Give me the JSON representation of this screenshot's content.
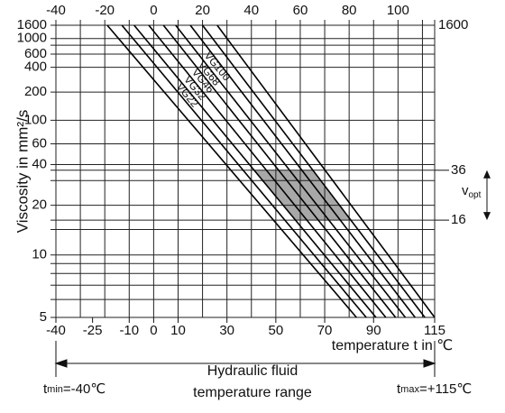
{
  "chart_data": {
    "type": "line",
    "ylabel": "Viscosity in mm²/s",
    "xlabel": "temperature t in ℃",
    "yscale": "loglog",
    "color": "#000000",
    "band_color": "#a8a8a8",
    "xlim": [
      -40,
      115
    ],
    "ylim": [
      5,
      1600
    ],
    "xticks": [
      -40,
      -25,
      -10,
      0,
      10,
      30,
      50,
      70,
      90,
      115
    ],
    "xticks_top": [
      -40,
      -20,
      0,
      20,
      40,
      60,
      80,
      100
    ],
    "yticks": [
      5,
      10,
      20,
      40,
      60,
      100,
      200,
      400,
      600,
      1000,
      1600
    ],
    "yticks_right": [
      1600
    ],
    "xgrid": [
      -40,
      -30,
      -20,
      -10,
      0,
      10,
      20,
      30,
      40,
      50,
      60,
      70,
      80,
      90,
      100,
      110,
      115
    ],
    "ygrid": [
      5,
      6,
      7,
      8,
      9,
      10,
      14,
      16,
      20,
      30,
      36,
      40,
      60,
      100,
      200,
      400,
      600,
      800,
      1000,
      1600
    ],
    "series": [
      {
        "name": null,
        "x": [
          -19,
          83
        ],
        "values": [
          1600,
          5
        ]
      },
      {
        "name": null,
        "x": [
          -13,
          87
        ],
        "values": [
          1600,
          5
        ]
      },
      {
        "name": "VG22",
        "x": [
          -8,
          91
        ],
        "values": [
          1600,
          5
        ]
      },
      {
        "name": "VG32",
        "x": [
          -2,
          95
        ],
        "values": [
          1600,
          5
        ]
      },
      {
        "name": "VG46",
        "x": [
          4,
          99
        ],
        "values": [
          1600,
          5
        ]
      },
      {
        "name": "VG68",
        "x": [
          9,
          103
        ],
        "values": [
          1600,
          5
        ]
      },
      {
        "name": "VG100",
        "x": [
          15,
          107
        ],
        "values": [
          1600,
          5
        ]
      },
      {
        "name": null,
        "x": [
          20,
          111
        ],
        "values": [
          1600,
          5
        ]
      },
      {
        "name": null,
        "x": [
          26,
          115
        ],
        "values": [
          1600,
          5
        ]
      }
    ],
    "optimal_range": [
      16,
      36
    ],
    "optimal_symbol": "v",
    "optimal_subscript": "opt",
    "range_min": {
      "symbol": "t",
      "subscript": "min",
      "text": "=-40℃"
    },
    "range_max": {
      "symbol": "t",
      "subscript": "max",
      "text": "=+115℃"
    },
    "range_label": [
      "Hydraulic fluid",
      "temperature range"
    ]
  }
}
